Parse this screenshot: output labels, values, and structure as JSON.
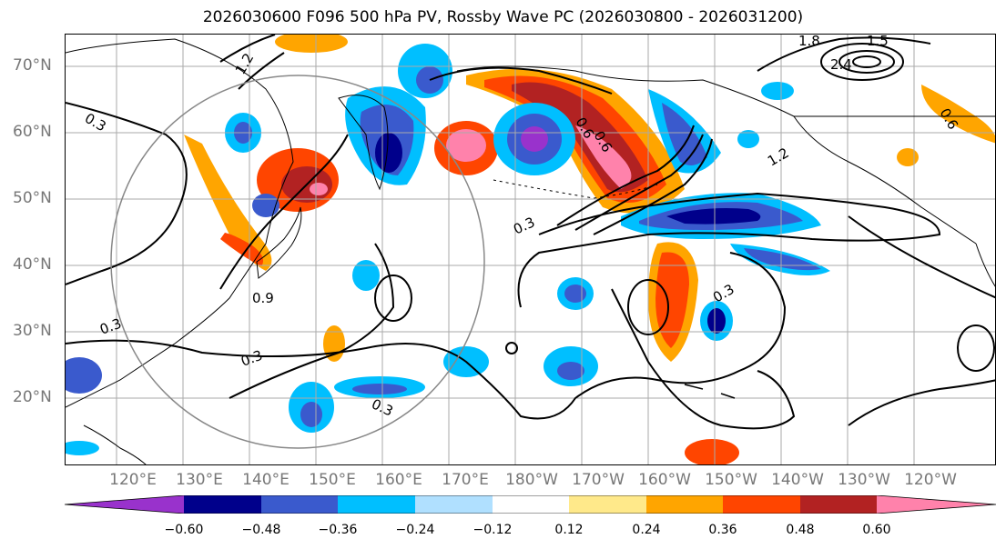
{
  "title": "2026030600 F096 500 hPa PV, Rossby Wave PC (2026030800 - 2026031200)",
  "lat_labels": [
    "70°N",
    "60°N",
    "50°N",
    "40°N",
    "30°N",
    "20°N"
  ],
  "lon_labels": [
    "120°E",
    "130°E",
    "140°E",
    "150°E",
    "160°E",
    "170°E",
    "180°W",
    "170°W",
    "160°W",
    "150°W",
    "140°W",
    "130°W",
    "120°W"
  ],
  "colorbar": {
    "ticks": [
      "−0.60",
      "−0.48",
      "−0.36",
      "−0.24",
      "−0.12",
      "0.12",
      "0.24",
      "0.36",
      "0.48",
      "0.60"
    ],
    "colors": [
      "#9932cc",
      "#00008b",
      "#3a5acd",
      "#00bfff",
      "#b0e0ff",
      "#ffffff",
      "#ffe98a",
      "#ffa500",
      "#ff4500",
      "#b22222",
      "#ff82ab"
    ]
  },
  "contour_labels": [
    "1.2",
    "0.3",
    "1.8",
    "2.4",
    "1.5",
    "0.3",
    "1.2",
    "0.9",
    "0.3",
    "0.3",
    "0.3",
    "0.3",
    "0.6",
    "0.6",
    "0.6"
  ]
}
